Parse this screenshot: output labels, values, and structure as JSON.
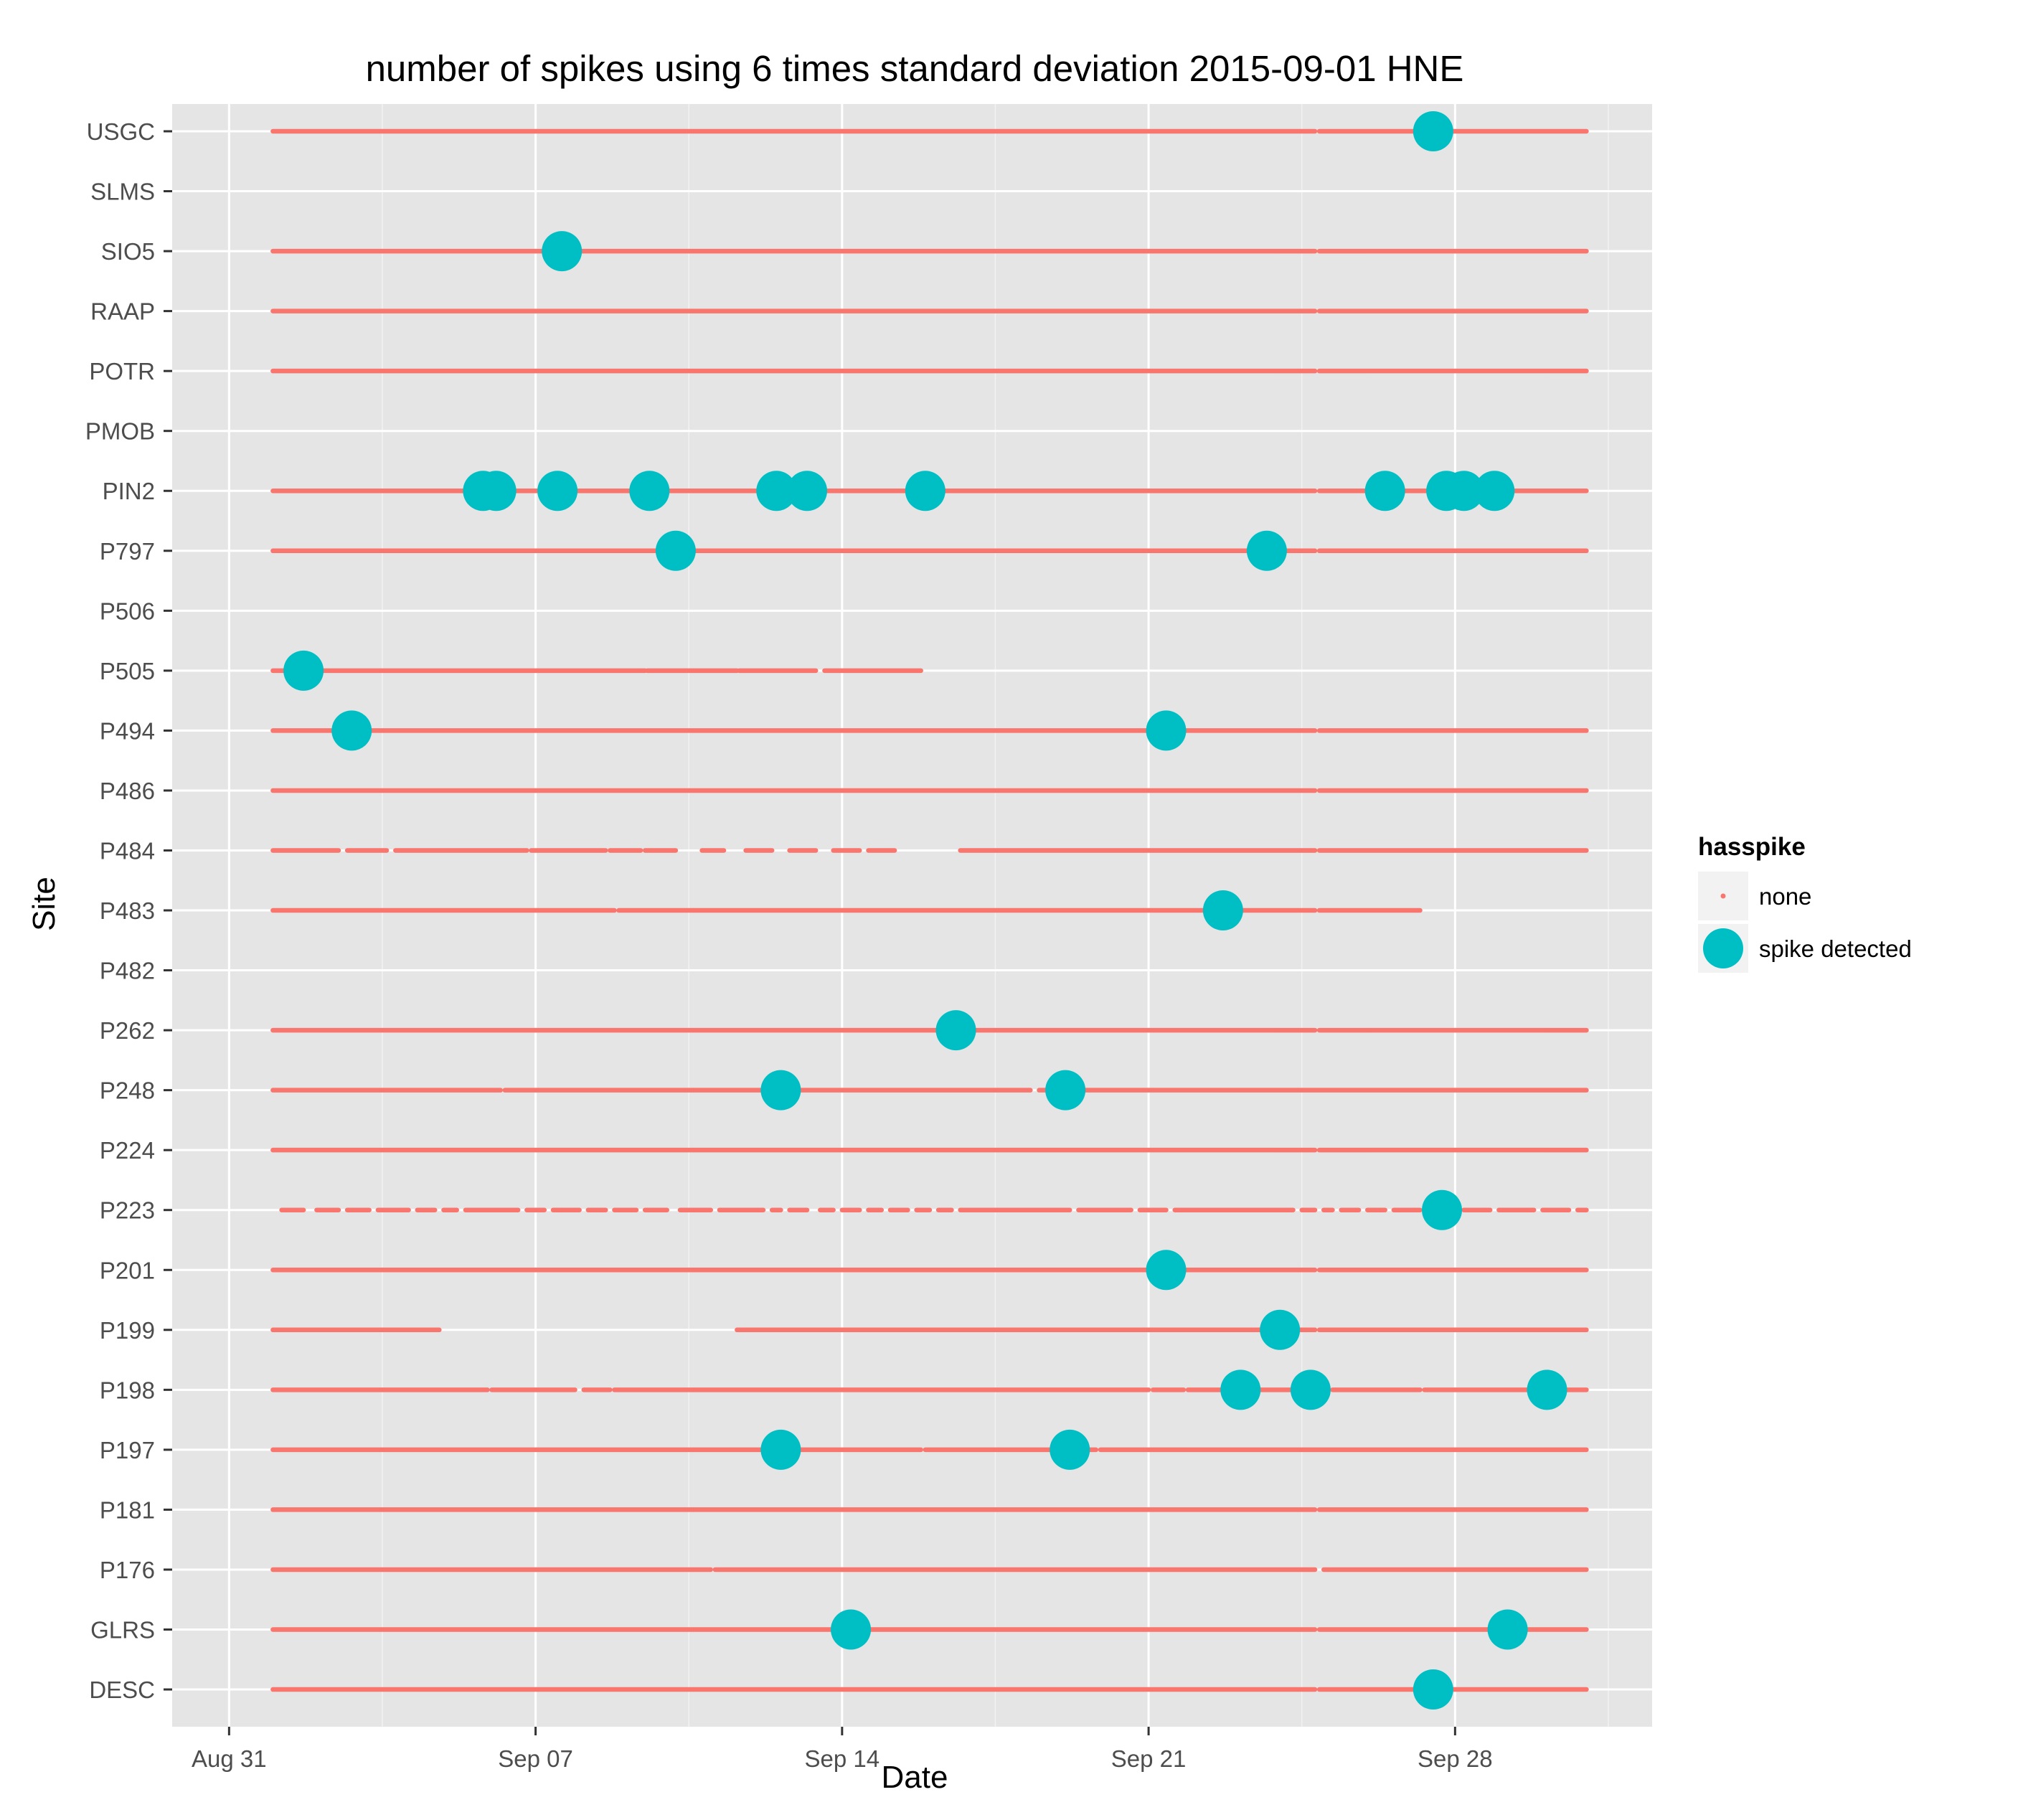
{
  "chart_data": {
    "type": "scatter",
    "title": "number of spikes using  6 times standard deviation 2015-09-01 HNE",
    "xlabel": "Date",
    "ylabel": "Site",
    "x_ticks": [
      "Aug 31",
      "Sep 07",
      "Sep 14",
      "Sep 21",
      "Sep 28"
    ],
    "x_tick_days": [
      0,
      7,
      14,
      21,
      28
    ],
    "xlim_days_since_aug31": [
      -1.3,
      32.5
    ],
    "grid": true,
    "legend_position": "right",
    "legend": {
      "title": "hasspike",
      "entries": [
        {
          "label": "none",
          "color": "#F8766D"
        },
        {
          "label": "spike detected",
          "color": "#00BFC4"
        }
      ]
    },
    "sites": [
      "USGC",
      "SLMS",
      "SIO5",
      "RAAP",
      "POTR",
      "PMOB",
      "PIN2",
      "P797",
      "P506",
      "P505",
      "P494",
      "P486",
      "P484",
      "P483",
      "P482",
      "P262",
      "P248",
      "P224",
      "P223",
      "P201",
      "P199",
      "P198",
      "P197",
      "P181",
      "P176",
      "GLRS",
      "DESC"
    ],
    "series": [
      {
        "name": "none",
        "note_units": "days since Aug 31, segments of continuous 'none' observations",
        "segments": {
          "USGC": [
            [
              1,
              24.8
            ],
            [
              24.9,
              31
            ]
          ],
          "SIO5": [
            [
              1,
              24.8
            ],
            [
              24.9,
              31
            ]
          ],
          "RAAP": [
            [
              1,
              24.8
            ],
            [
              24.9,
              31
            ]
          ],
          "POTR": [
            [
              1,
              24.8
            ],
            [
              24.9,
              31
            ]
          ],
          "PIN2": [
            [
              1,
              24.8
            ],
            [
              24.9,
              31
            ]
          ],
          "P797": [
            [
              1,
              24.8
            ],
            [
              24.9,
              31
            ]
          ],
          "P505": [
            [
              1,
              9.5
            ],
            [
              9.55,
              11.6
            ],
            [
              11.65,
              13.4
            ],
            [
              13.6,
              15.8
            ]
          ],
          "P494": [
            [
              1,
              24.8
            ],
            [
              24.9,
              31
            ]
          ],
          "P486": [
            [
              1,
              24.8
            ],
            [
              24.9,
              31
            ]
          ],
          "P484": [
            [
              1,
              2.5
            ],
            [
              2.7,
              3.6
            ],
            [
              3.8,
              6.8
            ],
            [
              6.9,
              8.6
            ],
            [
              8.7,
              9.4
            ],
            [
              9.5,
              10.2
            ],
            [
              10.8,
              11.3
            ],
            [
              11.8,
              12.4
            ],
            [
              12.8,
              13.4
            ],
            [
              13.8,
              14.4
            ],
            [
              14.6,
              15.2
            ],
            [
              16.7,
              24.8
            ],
            [
              24.9,
              31
            ]
          ],
          "P483": [
            [
              1,
              8.8
            ],
            [
              8.9,
              24.8
            ],
            [
              24.9,
              27.2
            ]
          ],
          "P262": [
            [
              1,
              24.8
            ],
            [
              24.9,
              31
            ]
          ],
          "P248": [
            [
              1,
              6.2
            ],
            [
              6.3,
              18.3
            ],
            [
              18.5,
              31
            ]
          ],
          "P224": [
            [
              1,
              24.8
            ],
            [
              24.9,
              31
            ]
          ],
          "P223": [
            [
              1.2,
              1.7
            ],
            [
              2,
              2.5
            ],
            [
              2.7,
              3.2
            ],
            [
              3.4,
              4.1
            ],
            [
              4.3,
              4.7
            ],
            [
              4.9,
              5.2
            ],
            [
              5.4,
              6.6
            ],
            [
              6.8,
              7.2
            ],
            [
              7.4,
              8
            ],
            [
              8.2,
              8.6
            ],
            [
              8.8,
              9.3
            ],
            [
              9.5,
              10
            ],
            [
              10.3,
              11
            ],
            [
              11.2,
              12.2
            ],
            [
              12.4,
              12.6
            ],
            [
              12.8,
              13.2
            ],
            [
              13.5,
              13.8
            ],
            [
              14,
              14.4
            ],
            [
              14.6,
              14.9
            ],
            [
              15.1,
              15.5
            ],
            [
              15.7,
              16
            ],
            [
              16.2,
              16.5
            ],
            [
              16.7,
              19.2
            ],
            [
              19.4,
              20.6
            ],
            [
              20.8,
              21.4
            ],
            [
              21.6,
              24.3
            ],
            [
              24.5,
              24.8
            ],
            [
              25,
              25.2
            ],
            [
              25.4,
              25.8
            ],
            [
              26,
              26.4
            ],
            [
              26.6,
              27.2
            ],
            [
              27.4,
              28
            ],
            [
              28.2,
              28.8
            ],
            [
              29,
              29.8
            ],
            [
              30,
              30.6
            ],
            [
              30.8,
              31
            ]
          ],
          "P201": [
            [
              1,
              24.8
            ],
            [
              24.9,
              31
            ]
          ],
          "P199": [
            [
              1,
              4.8
            ],
            [
              11.6,
              24.8
            ],
            [
              24.9,
              31
            ]
          ],
          "P198": [
            [
              1,
              5.9
            ],
            [
              6,
              7.9
            ],
            [
              8.1,
              8.7
            ],
            [
              8.8,
              21
            ],
            [
              21.1,
              21.8
            ],
            [
              21.9,
              24.8
            ],
            [
              25.2,
              27.2
            ],
            [
              27.3,
              31
            ]
          ],
          "P197": [
            [
              1,
              12.3
            ],
            [
              12.6,
              15.8
            ],
            [
              15.9,
              19.8
            ],
            [
              19.9,
              31
            ]
          ],
          "P181": [
            [
              1,
              24.8
            ],
            [
              24.9,
              31
            ]
          ],
          "P176": [
            [
              1,
              11
            ],
            [
              11.1,
              24.8
            ],
            [
              25,
              31
            ]
          ],
          "GLRS": [
            [
              1,
              24.8
            ],
            [
              24.9,
              31
            ]
          ],
          "DESC": [
            [
              1,
              24.8
            ],
            [
              24.9,
              31
            ]
          ]
        }
      },
      {
        "name": "spike detected",
        "note_units": "days since Aug 31",
        "points": [
          {
            "site": "USGC",
            "x": 27.5
          },
          {
            "site": "SIO5",
            "x": 7.6
          },
          {
            "site": "PIN2",
            "x": 5.8
          },
          {
            "site": "PIN2",
            "x": 6.1
          },
          {
            "site": "PIN2",
            "x": 7.5
          },
          {
            "site": "PIN2",
            "x": 9.6
          },
          {
            "site": "PIN2",
            "x": 12.5
          },
          {
            "site": "PIN2",
            "x": 13.2
          },
          {
            "site": "PIN2",
            "x": 15.9
          },
          {
            "site": "PIN2",
            "x": 26.4
          },
          {
            "site": "PIN2",
            "x": 27.8
          },
          {
            "site": "PIN2",
            "x": 28.2
          },
          {
            "site": "PIN2",
            "x": 28.9
          },
          {
            "site": "P797",
            "x": 10.2
          },
          {
            "site": "P797",
            "x": 23.7
          },
          {
            "site": "P505",
            "x": 1.7
          },
          {
            "site": "P494",
            "x": 2.8
          },
          {
            "site": "P494",
            "x": 21.4
          },
          {
            "site": "P483",
            "x": 22.7
          },
          {
            "site": "P262",
            "x": 16.6
          },
          {
            "site": "P248",
            "x": 12.6
          },
          {
            "site": "P248",
            "x": 19.1
          },
          {
            "site": "P223",
            "x": 27.7
          },
          {
            "site": "P201",
            "x": 21.4
          },
          {
            "site": "P199",
            "x": 24
          },
          {
            "site": "P198",
            "x": 23.1
          },
          {
            "site": "P198",
            "x": 24.7
          },
          {
            "site": "P198",
            "x": 30.1
          },
          {
            "site": "P197",
            "x": 12.6
          },
          {
            "site": "P197",
            "x": 19.2
          },
          {
            "site": "GLRS",
            "x": 14.2
          },
          {
            "site": "GLRS",
            "x": 29.2
          },
          {
            "site": "DESC",
            "x": 27.5
          }
        ]
      }
    ]
  }
}
